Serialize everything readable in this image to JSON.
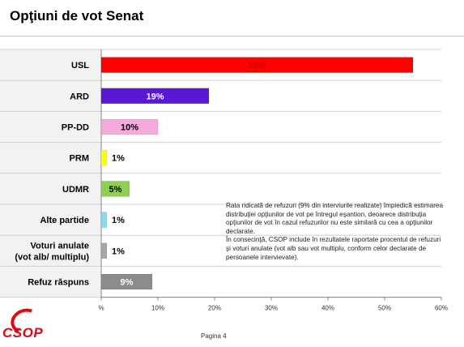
{
  "header": {
    "title": "Opţiuni de vot Senat"
  },
  "chart_data": {
    "type": "bar",
    "orientation": "horizontal",
    "categories": [
      "USL",
      "ARD",
      "PP-DD",
      "PRM",
      "UDMR",
      "Alte partide",
      "Voturi anulate (vot alb/ multiplu)",
      "Refuz răspuns"
    ],
    "category_lines": [
      [
        "USL"
      ],
      [
        "ARD"
      ],
      [
        "PP-DD"
      ],
      [
        "PRM"
      ],
      [
        "UDMR"
      ],
      [
        "Alte partide"
      ],
      [
        "Voturi anulate",
        "(vot alb/ multiplu)"
      ],
      [
        "Refuz răspuns"
      ]
    ],
    "values": [
      55,
      19,
      10,
      1,
      5,
      1,
      1,
      9
    ],
    "data_labels": [
      "55%",
      "19%",
      "10%",
      "1%",
      "5%",
      "1%",
      "1%",
      "9%"
    ],
    "label_inside": [
      true,
      true,
      true,
      false,
      true,
      false,
      false,
      true
    ],
    "colors": [
      "#ff0000",
      "#5a18d6",
      "#f7a8dc",
      "#ffff00",
      "#8ed052",
      "#82dcf2",
      "#a6a6a6",
      "#8c8c8c"
    ],
    "label_colors": [
      "#c00000",
      "#ffffff",
      "#000000",
      "#000000",
      "#000000",
      "#000000",
      "#000000",
      "#ffffff"
    ],
    "xlim": [
      0,
      60
    ],
    "xticks": [
      0,
      10,
      20,
      30,
      40,
      50,
      60
    ],
    "xtick_labels": [
      "%",
      "10%",
      "20%",
      "30%",
      "40%",
      "50%",
      "60%"
    ],
    "band_fill": "#f2f2f2",
    "band_line": "#d0d0d0"
  },
  "note": {
    "paragraphs": [
      "Rata ridicată de refuzuri (9% din interviurile realizate) împiedică estimarea distribuţiei opţiunilor de vot pe întregul eşantion, deoarece distribuţia opţiunilor de vot în cazul refuzurilor nu este similară cu cea a opţiunilor declarate.",
      "În consecinţă, CSOP include în rezultatele raportate procentul de refuzuri şi voturi anulate (vot alb sau vot multiplu, conform celor declarate de persoanele intervievate)."
    ]
  },
  "logo": {
    "text": "CSOP"
  },
  "footer": {
    "page": "Pagina 4"
  }
}
